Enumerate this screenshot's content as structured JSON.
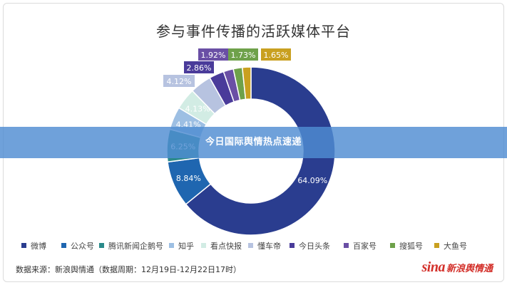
{
  "banner": {
    "text": "今日国际舆情热点速递"
  },
  "source": "数据来源：新浪舆情通（数据周期：12月19日-12月22日17时）",
  "logo": {
    "mark": "sina",
    "text": "新浪舆情通"
  },
  "chart_data": {
    "type": "pie",
    "subtype": "donut",
    "title": "参与事件传播的活跃媒体平台",
    "categories": [
      "微博",
      "公众号",
      "腾讯新闻企鹅号",
      "知乎",
      "看点快报",
      "懂车帝",
      "今日头条",
      "百家号",
      "搜狐号",
      "大鱼号"
    ],
    "values": [
      64.09,
      8.84,
      6.25,
      4.41,
      4.13,
      4.12,
      2.86,
      1.92,
      1.73,
      1.65
    ],
    "labels": [
      "64.09%",
      "8.84%",
      "6.25%",
      "4.41%",
      "4.13%",
      "4.12%",
      "2.86%",
      "1.92%",
      "1.73%",
      "1.65%"
    ],
    "colors": [
      "#2a3d8f",
      "#1f66b0",
      "#2a8a8a",
      "#9dbfe3",
      "#d2ece4",
      "#b7c3e0",
      "#4a3b9a",
      "#6a4fa5",
      "#6ea14a",
      "#c9a020"
    ],
    "legend_position": "bottom"
  }
}
